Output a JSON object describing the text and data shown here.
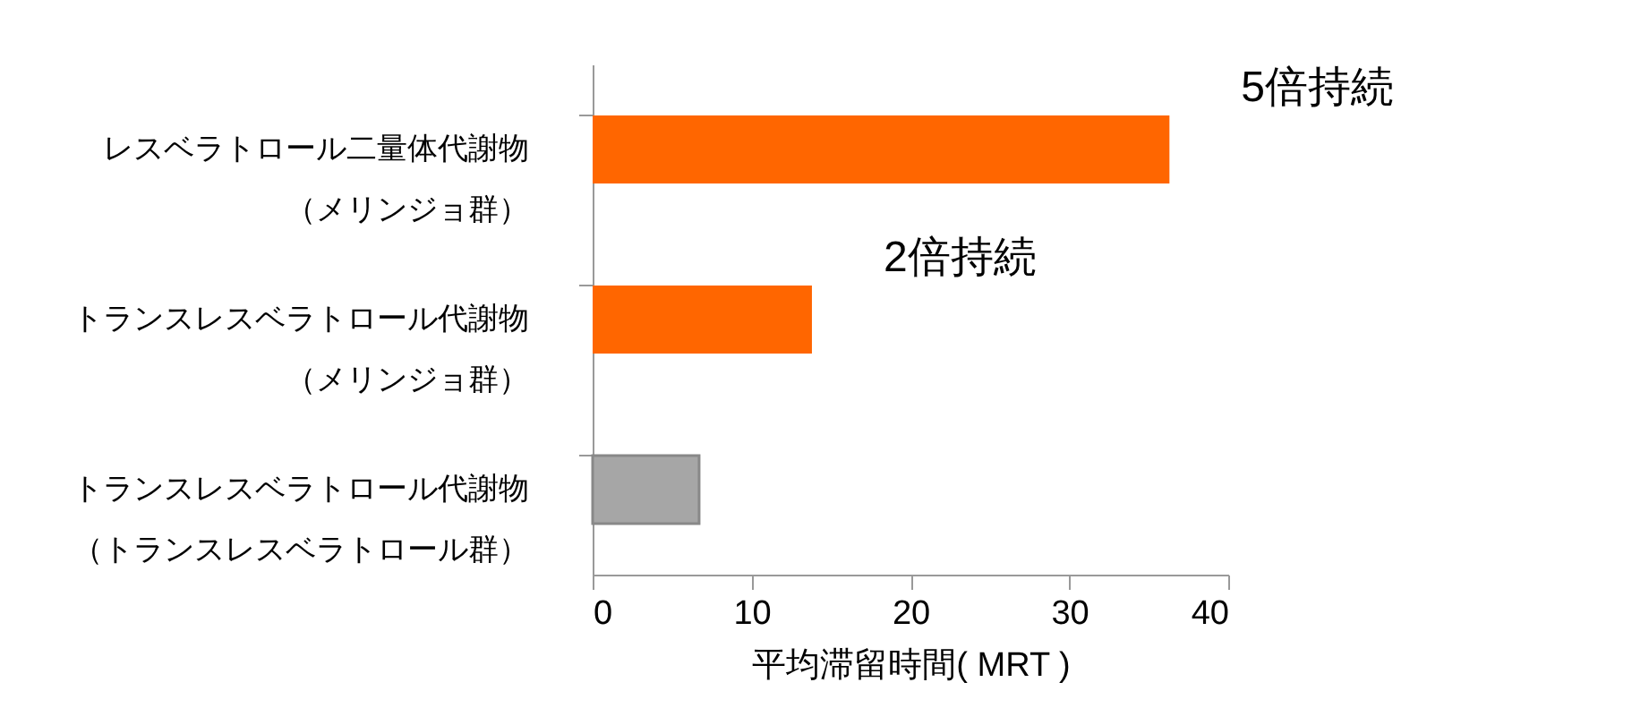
{
  "chart_data": {
    "type": "bar",
    "orientation": "horizontal",
    "categories": [
      "レスベラトロール二量体代謝物（メリンジョ群）",
      "トランスレスベラトロール代謝物（メリンジョ群）",
      "トランスレスベラトロール代謝物（トランスレスベラトロール群）"
    ],
    "values": [
      36.3,
      13.8,
      6.7
    ],
    "colors": [
      "#ff6600",
      "#ff6600",
      "#a6a6a6"
    ],
    "xlim": [
      0,
      40
    ],
    "xticks": [
      0,
      10,
      20,
      30,
      40
    ],
    "xlabel": "平均滞留時間( MRT )",
    "grid": false,
    "annotations": [
      {
        "text": "5倍持続",
        "x": 36.3,
        "y": "レスベラトロール二量体代謝物（メリンジョ群）"
      },
      {
        "text": "2倍持続",
        "x": 13.8,
        "y": "トランスレスベラトロール代謝物（メリンジョ群）"
      }
    ]
  }
}
